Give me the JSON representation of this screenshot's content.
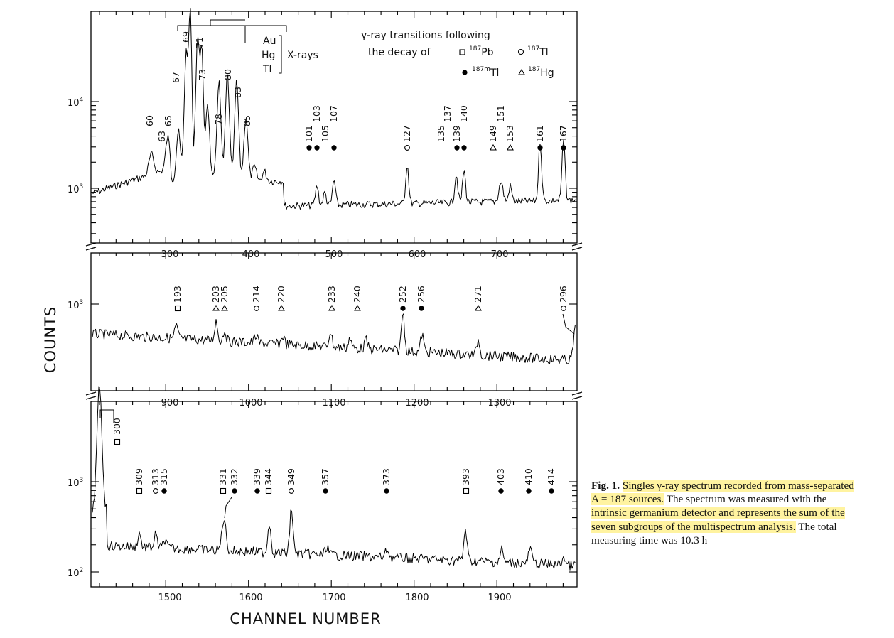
{
  "figure": {
    "y_axis_title": "COUNTS",
    "x_axis_title": "CHANNEL NUMBER",
    "legend": {
      "title_line1": "γ-ray transitions following",
      "title_line2": "the decay of",
      "xray_elements": [
        "Au",
        "Hg",
        "Tl"
      ],
      "xray_label": "X-rays",
      "markers": [
        {
          "symbol": "square",
          "isotope": "187Pb",
          "sup": "187",
          "el": "Pb"
        },
        {
          "symbol": "circle-open",
          "isotope": "187Tl",
          "sup": "187",
          "el": "Tl"
        },
        {
          "symbol": "circle-filled",
          "isotope": "187mTl",
          "sup": "187m",
          "el": "Tl"
        },
        {
          "symbol": "triangle",
          "isotope": "187Hg",
          "sup": "187",
          "el": "Hg"
        }
      ]
    },
    "xray_peak_labels": [
      "69",
      "71",
      "73",
      "80",
      "83",
      "85",
      "67",
      "60",
      "63",
      "65",
      "78"
    ],
    "panels": [
      {
        "x_ticks": [
          "300",
          "400",
          "500",
          "600",
          "700"
        ],
        "y_ticks": [
          "10^3",
          "10^4"
        ],
        "peaks": [
          {
            "label": "101",
            "symbol": "circle-filled"
          },
          {
            "label": "103",
            "symbol": "circle-filled"
          },
          {
            "label": "105",
            "symbol": "none"
          },
          {
            "label": "107",
            "symbol": "circle-filled"
          },
          {
            "label": "127",
            "symbol": "circle-open"
          },
          {
            "label": "135",
            "symbol": "none"
          },
          {
            "label": "137",
            "symbol": "none"
          },
          {
            "label": "139",
            "symbol": "circle-filled"
          },
          {
            "label": "140",
            "symbol": "circle-filled"
          },
          {
            "label": "149",
            "symbol": "triangle"
          },
          {
            "label": "151",
            "symbol": "none"
          },
          {
            "label": "153",
            "symbol": "triangle"
          },
          {
            "label": "161",
            "symbol": "circle-filled"
          },
          {
            "label": "167",
            "symbol": "circle-filled"
          }
        ]
      },
      {
        "x_ticks": [
          "900",
          "1000",
          "1100",
          "1200",
          "1300"
        ],
        "y_ticks": [
          "10^3"
        ],
        "peaks": [
          {
            "label": "193",
            "symbol": "square"
          },
          {
            "label": "203",
            "symbol": "triangle"
          },
          {
            "label": "205",
            "symbol": "triangle"
          },
          {
            "label": "214",
            "symbol": "circle-open"
          },
          {
            "label": "220",
            "symbol": "triangle"
          },
          {
            "label": "233",
            "symbol": "triangle"
          },
          {
            "label": "240",
            "symbol": "triangle"
          },
          {
            "label": "252",
            "symbol": "circle-filled"
          },
          {
            "label": "256",
            "symbol": "circle-filled"
          },
          {
            "label": "271",
            "symbol": "triangle"
          },
          {
            "label": "296",
            "symbol": "circle-open"
          }
        ]
      },
      {
        "x_ticks": [
          "1500",
          "1600",
          "1700",
          "1800",
          "1900"
        ],
        "y_ticks": [
          "10^2",
          "10^3"
        ],
        "peaks": [
          {
            "label": "300",
            "symbol": "square"
          },
          {
            "label": "309",
            "symbol": "square"
          },
          {
            "label": "313",
            "symbol": "circle-open"
          },
          {
            "label": "315",
            "symbol": "circle-filled"
          },
          {
            "label": "331",
            "symbol": "square"
          },
          {
            "label": "332",
            "symbol": "circle-filled"
          },
          {
            "label": "339",
            "symbol": "circle-filled"
          },
          {
            "label": "344",
            "symbol": "square"
          },
          {
            "label": "349",
            "symbol": "circle-open"
          },
          {
            "label": "357",
            "symbol": "circle-filled"
          },
          {
            "label": "373",
            "symbol": "circle-filled"
          },
          {
            "label": "393",
            "symbol": "square"
          },
          {
            "label": "403",
            "symbol": "circle-filled"
          },
          {
            "label": "410",
            "symbol": "circle-filled"
          },
          {
            "label": "414",
            "symbol": "circle-filled"
          }
        ]
      }
    ]
  },
  "caption": {
    "label": "Fig. 1.",
    "part1": "Singles γ-ray spectrum recorded from mass-separated A = 187 sources.",
    "part2": "The spectrum was measured with the",
    "part3": "intrinsic germanium detector and represents the sum of the seven subgroups of the multispectrum analysis.",
    "part4": "The total measuring time was 10.3 h"
  }
}
